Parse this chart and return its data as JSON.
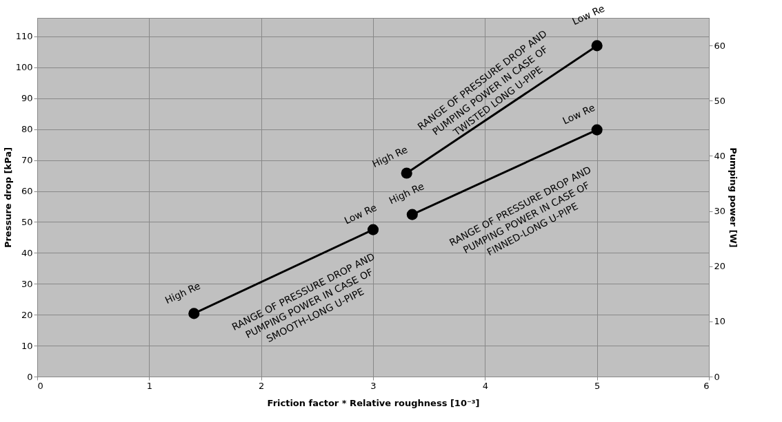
{
  "chart_data": {
    "type": "line",
    "xlabel": "Friction factor * Relative roughness [10⁻³]",
    "ylabel": "Pressure drop [kPa]",
    "y2label": "Pumping power [W]",
    "xlim": [
      0,
      6
    ],
    "xticks": [
      0,
      1,
      2,
      3,
      4,
      5,
      6
    ],
    "ylim": [
      0,
      116
    ],
    "yticks": [
      0,
      10,
      20,
      30,
      40,
      50,
      60,
      70,
      80,
      90,
      100,
      110
    ],
    "y2lim": [
      0,
      65
    ],
    "y2ticks": [
      0,
      10,
      20,
      30,
      40,
      50,
      60
    ],
    "grid": true,
    "marker": "circle",
    "line_style": "solid",
    "series": [
      {
        "color": "#000000",
        "x": [
          1.4,
          3.0
        ],
        "values": [
          20.4,
          47.5
        ]
      },
      {
        "color": "#000000",
        "x": [
          3.35,
          5.0
        ],
        "values": [
          52.4,
          79.8
        ]
      },
      {
        "color": "#000000",
        "x": [
          3.3,
          5.0
        ],
        "values": [
          65.8,
          107
        ]
      }
    ],
    "annotations": [
      {
        "text": "High Re",
        "x": 1.4,
        "y": 20.4
      },
      {
        "text": "Low Re",
        "x": 3.0,
        "y": 47.5
      },
      {
        "text": "High Re",
        "x": 3.35,
        "y": 52.4
      },
      {
        "text": "Low Re",
        "x": 5.0,
        "y": 79.8
      },
      {
        "text": "High Re",
        "x": 3.3,
        "y": 65.8
      },
      {
        "text": "Low Re",
        "x": 5.0,
        "y": 107
      },
      {
        "text": "RANGE OF PRESSURE DROP AND\nPUMPING POWER IN CASE OF\nSMOOTH-LONG U-PIPE",
        "x": 2.2,
        "y": 33.95
      },
      {
        "text": "RANGE OF PRESSURE DROP AND\nPUMPING POWER IN CASE OF\nFINNED-LONG U-PIPE",
        "x": 4.175,
        "y": 66.1
      },
      {
        "text": "RANGE OF PRESSURE DROP AND\nPUMPING POWER IN CASE OF\nTWISTED LONG U-PIPE",
        "x": 4.15,
        "y": 86.4
      }
    ]
  }
}
